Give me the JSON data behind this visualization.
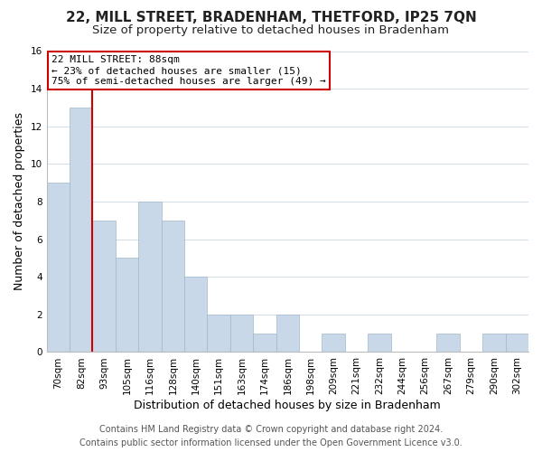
{
  "title": "22, MILL STREET, BRADENHAM, THETFORD, IP25 7QN",
  "subtitle": "Size of property relative to detached houses in Bradenham",
  "xlabel": "Distribution of detached houses by size in Bradenham",
  "ylabel": "Number of detached properties",
  "bin_labels": [
    "70sqm",
    "82sqm",
    "93sqm",
    "105sqm",
    "116sqm",
    "128sqm",
    "140sqm",
    "151sqm",
    "163sqm",
    "174sqm",
    "186sqm",
    "198sqm",
    "209sqm",
    "221sqm",
    "232sqm",
    "244sqm",
    "256sqm",
    "267sqm",
    "279sqm",
    "290sqm",
    "302sqm"
  ],
  "bar_values": [
    9,
    13,
    7,
    5,
    8,
    7,
    4,
    2,
    2,
    1,
    2,
    0,
    1,
    0,
    1,
    0,
    0,
    1,
    0,
    1,
    1
  ],
  "bar_color": "#c8d8e8",
  "bar_edge_color": "#a0b8cc",
  "red_line_x": 1.5,
  "annotation_text": "22 MILL STREET: 88sqm\n← 23% of detached houses are smaller (15)\n75% of semi-detached houses are larger (49) →",
  "annotation_box_color": "#ffffff",
  "annotation_border_color": "#cc0000",
  "ylim": [
    0,
    16
  ],
  "yticks": [
    0,
    2,
    4,
    6,
    8,
    10,
    12,
    14,
    16
  ],
  "footer_line1": "Contains HM Land Registry data © Crown copyright and database right 2024.",
  "footer_line2": "Contains public sector information licensed under the Open Government Licence v3.0.",
  "bg_color": "#ffffff",
  "grid_color": "#d0dce8",
  "title_fontsize": 11,
  "subtitle_fontsize": 9.5,
  "axis_label_fontsize": 9,
  "tick_fontsize": 7.5,
  "annotation_fontsize": 8,
  "footer_fontsize": 7
}
